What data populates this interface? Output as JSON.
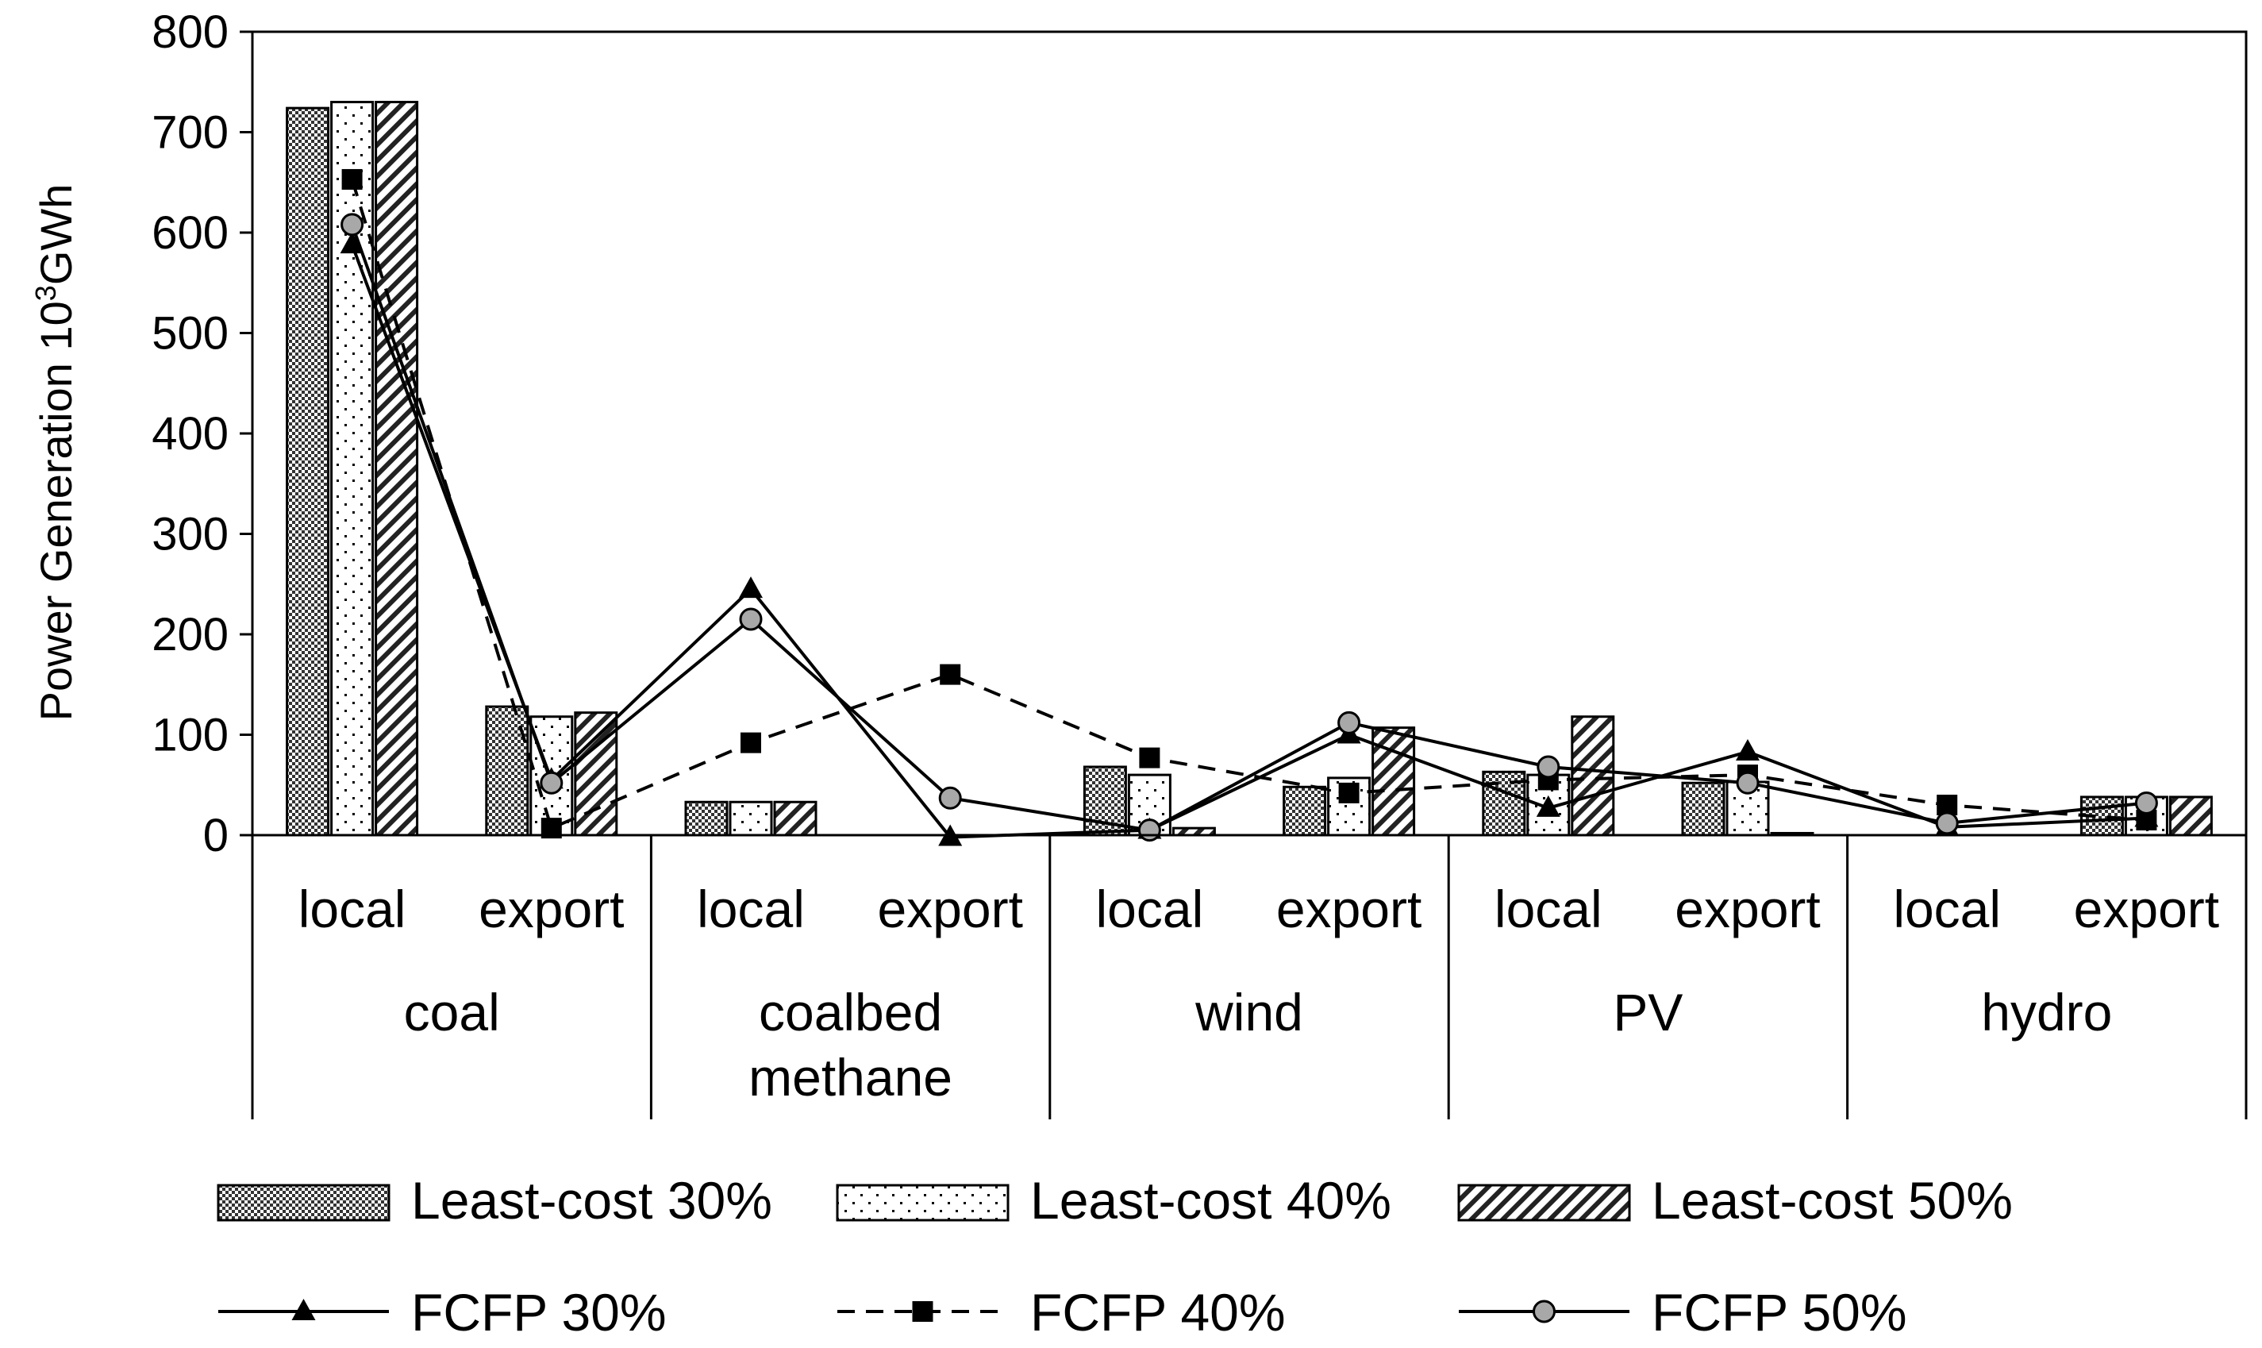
{
  "chart_data": {
    "type": "bar",
    "ylabel": "Power Generation 10",
    "ylabel_sup": "3",
    "ylabel_suffix": "GWh",
    "ylim": [
      0,
      800
    ],
    "yticks": [
      0,
      100,
      200,
      300,
      400,
      500,
      600,
      700,
      800
    ],
    "groups": [
      "coal",
      "coalbed methane",
      "wind",
      "PV",
      "hydro"
    ],
    "subcategories": [
      "local",
      "export",
      "local",
      "export",
      "local",
      "export",
      "local",
      "export",
      "local",
      "export"
    ],
    "bar_series": [
      {
        "name": "Least-cost 30%",
        "pattern": "checker",
        "values": [
          724,
          128,
          33,
          0,
          68,
          48,
          63,
          52,
          0,
          38
        ]
      },
      {
        "name": "Least-cost 40%",
        "pattern": "dots",
        "values": [
          730,
          118,
          33,
          0,
          60,
          57,
          60,
          53,
          0,
          38
        ]
      },
      {
        "name": "Least-cost 50%",
        "pattern": "hatch",
        "values": [
          730,
          122,
          33,
          0,
          7,
          107,
          118,
          2,
          0,
          38
        ]
      }
    ],
    "line_series": [
      {
        "name": "FCFP 30%",
        "marker": "triangle",
        "dash": "solid",
        "values": [
          588,
          55,
          245,
          -2,
          5,
          100,
          27,
          83,
          8,
          17
        ]
      },
      {
        "name": "FCFP 40%",
        "marker": "square",
        "dash": "dashed",
        "values": [
          653,
          7,
          92,
          160,
          77,
          42,
          55,
          60,
          30,
          15
        ]
      },
      {
        "name": "FCFP 50%",
        "marker": "circle",
        "dash": "solid",
        "values": [
          608,
          52,
          215,
          37,
          5,
          112,
          68,
          52,
          12,
          32
        ]
      }
    ],
    "colors": {
      "axis": "#000000",
      "bar_fill": "#ffffff",
      "checker": "#333333",
      "circle_marker": "#a8a8a8"
    }
  }
}
